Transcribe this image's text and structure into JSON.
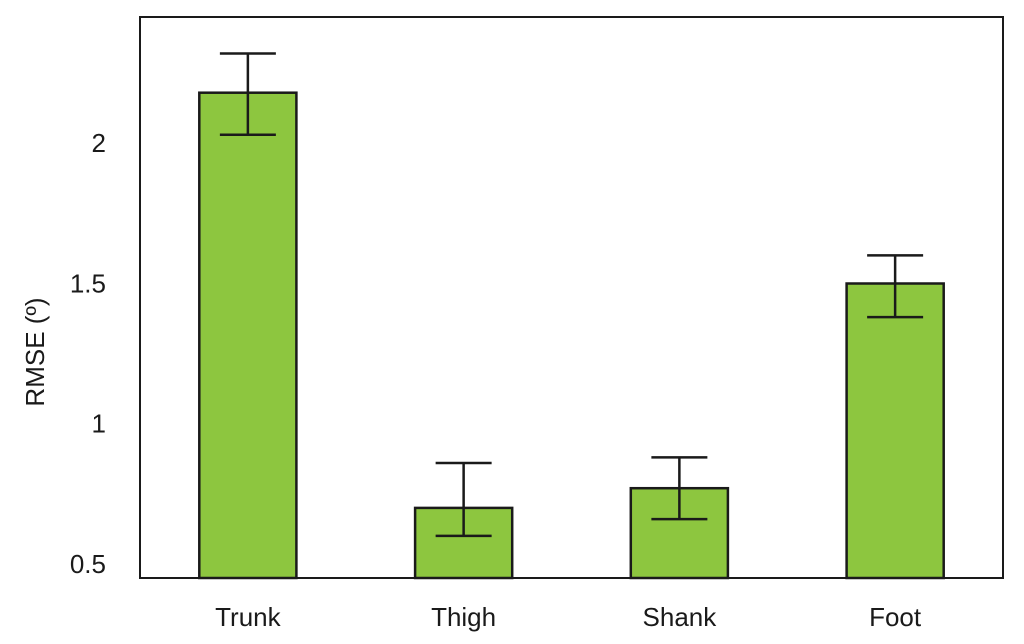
{
  "chart_data": {
    "type": "bar",
    "title": "",
    "xlabel": "",
    "ylabel": "RMSE (º)",
    "categories": [
      "Trunk",
      "Thigh",
      "Shank",
      "Foot"
    ],
    "values": [
      2.18,
      0.7,
      0.77,
      1.5
    ],
    "error_low": [
      2.03,
      0.6,
      0.66,
      1.38
    ],
    "error_high": [
      2.32,
      0.86,
      0.88,
      1.6
    ],
    "ylim": [
      0.45,
      2.45
    ],
    "yticks": [
      0.5,
      1,
      1.5,
      2
    ],
    "ytick_labels": [
      "0.5",
      "1",
      "1.5",
      "2"
    ],
    "bar_color": "#8dc63f",
    "edge_color": "#1a1a1a",
    "grid": false,
    "legend": "none"
  }
}
